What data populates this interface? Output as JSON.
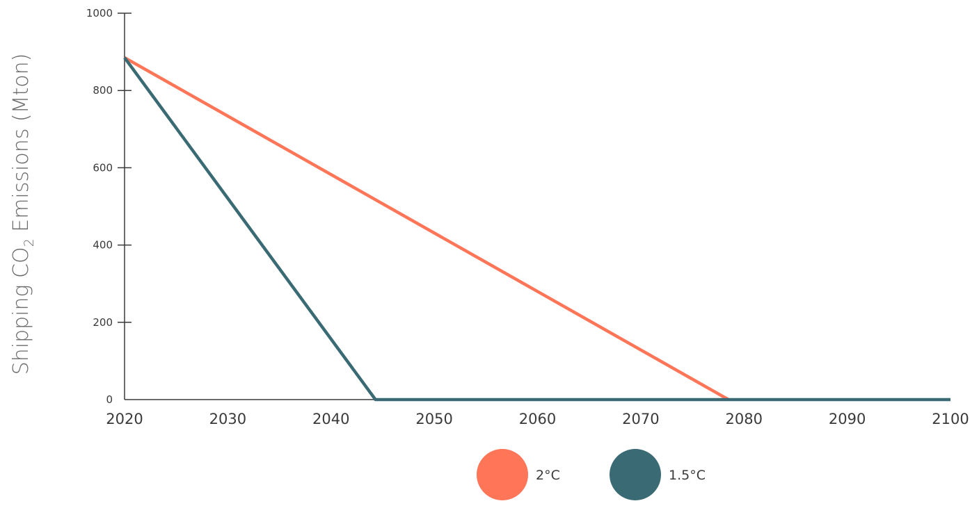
{
  "chart_data": {
    "type": "line",
    "title": "",
    "xlabel": "",
    "ylabel": {
      "pre": "Shipping CO",
      "sub": "2",
      "post": " Emissions (Mton)"
    },
    "xlim": [
      2020,
      2100
    ],
    "ylim": [
      0,
      1000
    ],
    "x_ticks": [
      2020,
      2030,
      2040,
      2050,
      2060,
      2070,
      2080,
      2090,
      2100
    ],
    "y_ticks": [
      0,
      200,
      400,
      600,
      800,
      1000
    ],
    "grid": false,
    "legend_position": "bottom",
    "series": [
      {
        "name": "2°C",
        "color": "#ff7557",
        "x": [
          2020,
          2078.5
        ],
        "y": [
          885,
          0
        ]
      },
      {
        "name": "1.5°C",
        "color": "#3a6b74",
        "x": [
          2020,
          2044.3,
          2100
        ],
        "y": [
          885,
          0,
          0
        ]
      }
    ]
  }
}
